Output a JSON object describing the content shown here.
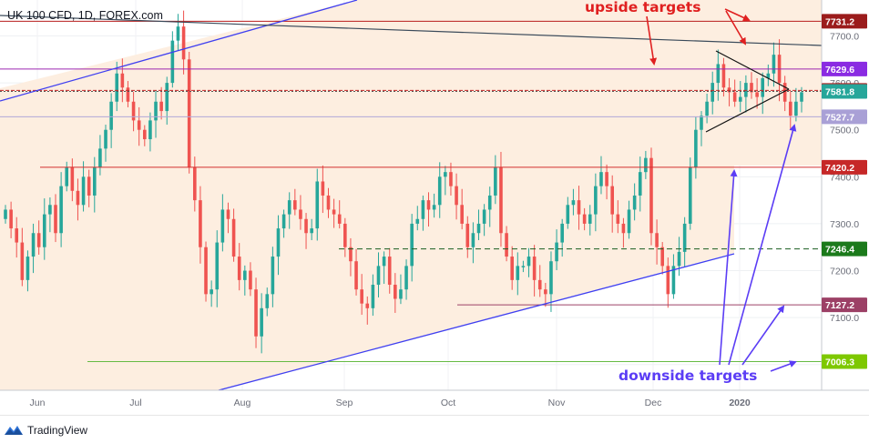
{
  "chart_title": "UK 100 CFD, 1D, FOREX.com",
  "footer": {
    "brand": "TradingView",
    "brand_icon": "tradingview-logo-icon"
  },
  "colors": {
    "bull": "#26a69a",
    "bear": "#ef5350",
    "channel": "#3f3ff0",
    "annotation_red": "#e02020",
    "annotation_blue": "#5b3df5",
    "shade": "#fdeee0"
  },
  "chart_data": {
    "type": "candlestick",
    "title": "UK 100 CFD, 1D, FOREX.com",
    "ylim": [
      6920,
      7790
    ],
    "y_ticks": [
      "7700.0",
      "7600.0",
      "7500.0",
      "7400.0",
      "7300.0",
      "7200.0",
      "7100.0",
      "7000.0"
    ],
    "x_ticks": [
      "Jun",
      "Jul",
      "Aug",
      "Sep",
      "Oct",
      "Nov",
      "Dec",
      "2020"
    ],
    "price_levels": [
      {
        "label": "7731.2",
        "value": 7731.2,
        "color": "#9b1c1c"
      },
      {
        "label": "7629.6",
        "value": 7629.6,
        "color": "#8a2be2"
      },
      {
        "label": "7583.9",
        "value": 7583.9,
        "color": "#b22222"
      },
      {
        "label": "7581.8",
        "value": 7581.8,
        "color": "#26a69a"
      },
      {
        "label": "7527.7",
        "value": 7527.7,
        "color": "#a9a0d6"
      },
      {
        "label": "7420.2",
        "value": 7420.2,
        "color": "#c62828"
      },
      {
        "label": "7246.4",
        "value": 7246.4,
        "color": "#1b7a1b"
      },
      {
        "label": "7127.2",
        "value": 7127.2,
        "color": "#9c4066"
      },
      {
        "label": "7006.3",
        "value": 7006.3,
        "color": "#7ec800"
      }
    ],
    "annotations": [
      "upside targets",
      "downside targets"
    ],
    "candles_approx_close": [
      7330,
      7290,
      7260,
      7180,
      7230,
      7280,
      7250,
      7320,
      7340,
      7280,
      7380,
      7420,
      7370,
      7340,
      7400,
      7360,
      7420,
      7460,
      7500,
      7560,
      7620,
      7590,
      7560,
      7520,
      7500,
      7480,
      7520,
      7560,
      7540,
      7600,
      7690,
      7720,
      7650,
      7420,
      7350,
      7250,
      7150,
      7160,
      7260,
      7330,
      7310,
      7230,
      7180,
      7200,
      7160,
      7060,
      7120,
      7150,
      7230,
      7290,
      7320,
      7350,
      7330,
      7310,
      7280,
      7290,
      7390,
      7360,
      7330,
      7320,
      7300,
      7250,
      7220,
      7160,
      7130,
      7120,
      7170,
      7210,
      7230,
      7170,
      7140,
      7160,
      7210,
      7300,
      7310,
      7350,
      7330,
      7340,
      7400,
      7410,
      7380,
      7340,
      7300,
      7250,
      7280,
      7300,
      7330,
      7360,
      7420,
      7280,
      7230,
      7180,
      7210,
      7210,
      7230,
      7180,
      7160,
      7150,
      7220,
      7260,
      7300,
      7340,
      7350,
      7320,
      7300,
      7320,
      7380,
      7410,
      7380,
      7320,
      7300,
      7280,
      7330,
      7360,
      7410,
      7440,
      7280,
      7250,
      7210,
      7150,
      7210,
      7240,
      7300,
      7420,
      7500,
      7530,
      7560,
      7600,
      7640,
      7590,
      7580,
      7560,
      7570,
      7600,
      7580,
      7570,
      7610,
      7620,
      7660,
      7600,
      7560,
      7530,
      7560,
      7580
    ],
    "series": [
      {
        "name": "UK 100 CFD",
        "close": "see candles_approx_close"
      }
    ]
  }
}
